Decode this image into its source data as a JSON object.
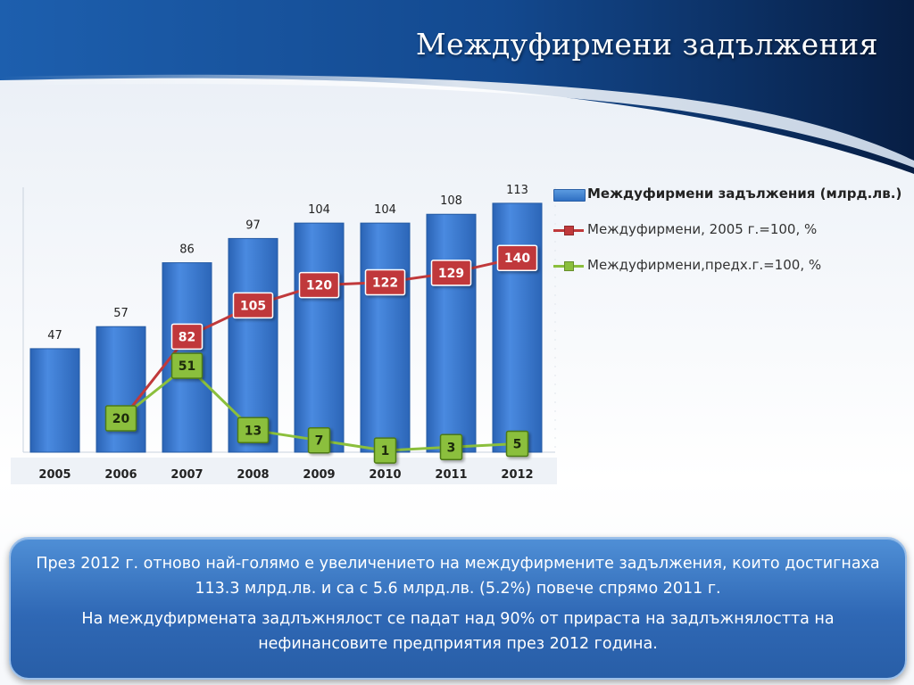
{
  "slide": {
    "title": "Междуфирмени задължения",
    "colors": {
      "header_dark": "#0a2d5e",
      "header_mid": "#1a5aa8",
      "box": "#2f68b5"
    },
    "paragraphs": [
      "През 2012 г. отново най-голямо е увеличението на междуфирмените задължения, които достигнаха 113.3 млрд.лв. и са с 5.6 млрд.лв. (5.2%) повече спрямо 2011 г.",
      "На междуфирмената задлъжнялост се падат над 90% от прираста на задлъжнялостта на нефинансовите предприятия през 2012 година."
    ]
  },
  "chart_data": {
    "type": "bar",
    "categories": [
      "2005",
      "2006",
      "2007",
      "2008",
      "2009",
      "2010",
      "2011",
      "2012"
    ],
    "series": [
      {
        "name": "Междуфирмени задължения (млрд.лв.)",
        "type": "bar",
        "color": "#3a7bd0",
        "values": [
          47,
          57,
          86,
          97,
          104,
          104,
          108,
          113
        ],
        "labels": [
          "47",
          "57",
          "86",
          "97",
          "104",
          "104",
          "108",
          "113"
        ]
      },
      {
        "name": "Междуфирмени, 2005 г.=100, %",
        "type": "line",
        "color": "#c0393b",
        "values": [
          null,
          20,
          82,
          105,
          120,
          122,
          129,
          140
        ],
        "labels": [
          "",
          "",
          "82",
          "105",
          "120",
          "122",
          "129",
          "140"
        ]
      },
      {
        "name": "Междуфирмени,предх.г.=100, %",
        "type": "line",
        "color": "#8bbf3c",
        "values": [
          null,
          20,
          51,
          13,
          7,
          1,
          3,
          5
        ],
        "labels": [
          "",
          "20",
          "51",
          "13",
          "7",
          "1",
          "3",
          "5"
        ]
      }
    ],
    "legend_position": "right",
    "grid": false
  }
}
